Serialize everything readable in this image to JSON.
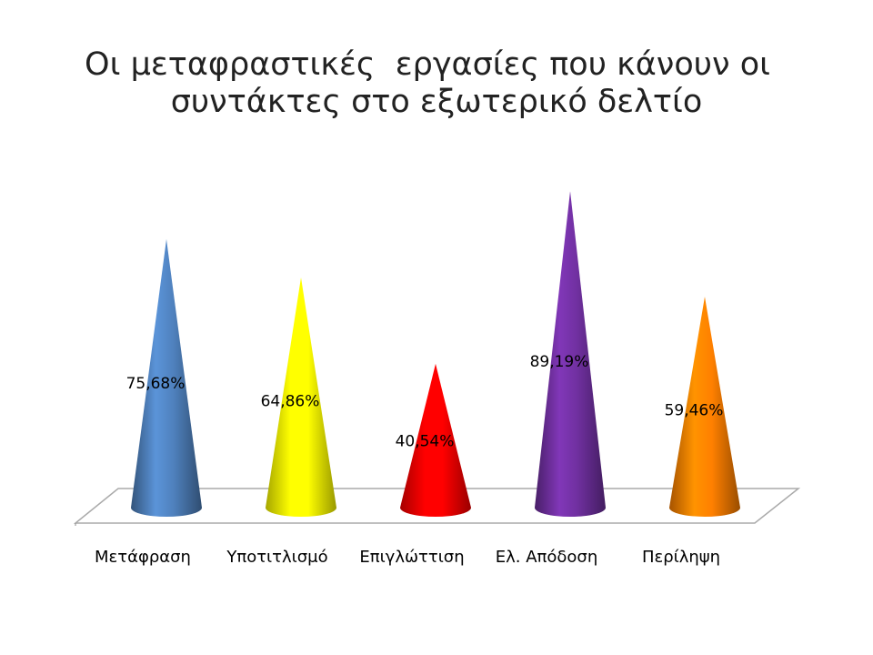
{
  "chart_data": {
    "type": "cone",
    "title": [
      "Οι μεταφραστικές  εργασίες που κάνουν οι",
      "συντάκτες στο εξωτερικό δελτίο"
    ],
    "categories": [
      "Μετάφραση",
      "Υποτιτλισμό",
      "Επιγλώττιση",
      "Ελ. Απόδοση",
      "Περίληψη"
    ],
    "values": [
      75.68,
      64.86,
      40.54,
      89.19,
      59.46
    ],
    "value_labels": [
      "75,68%",
      "64,86%",
      "40,54%",
      "89,19%",
      "59,46%"
    ],
    "colors": [
      "#4f81bd",
      "#ffff00",
      "#ff0000",
      "#7030a0",
      "#ff8000"
    ]
  }
}
